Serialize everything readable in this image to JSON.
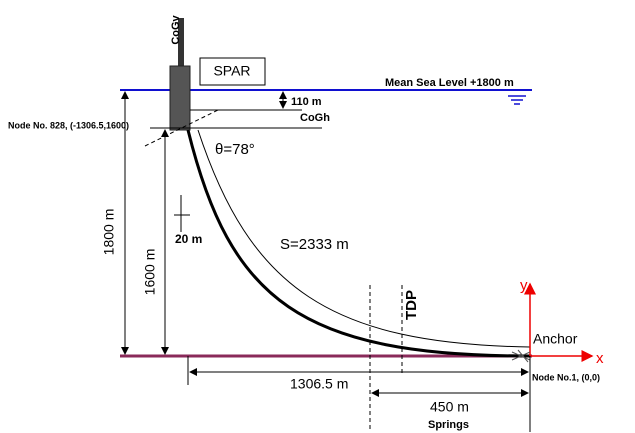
{
  "labels": {
    "cogv": "CoGv",
    "spar": "SPAR",
    "sea_level": "Mean Sea Level +1800 m",
    "draft": "110 m",
    "cogh": "CoGh",
    "top_node": "Node No. 828, (-1306.5,1600)",
    "angle": "θ=78°",
    "depth": "1800 m",
    "height": "1600 m",
    "offset": "20 m",
    "length": "S=2333 m",
    "tdp": "TDP",
    "y_axis": "y",
    "anchor": "Anchor",
    "x_axis": "x",
    "anchor_node": "Node No.1, (0,0)",
    "horizontal": "1306.5 m",
    "springs_length": "450 m",
    "springs": "Springs"
  }
}
